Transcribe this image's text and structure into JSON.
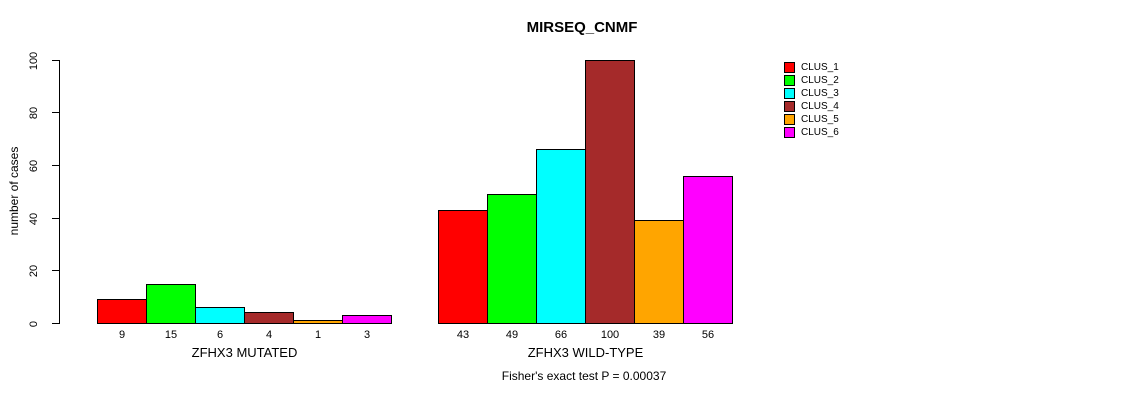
{
  "chart_data": {
    "type": "bar",
    "title": "MIRSEQ_CNMF",
    "ylabel": "number of cases",
    "xlabel": "",
    "ylim": [
      0,
      100
    ],
    "yticks": [
      0,
      20,
      40,
      60,
      80,
      100
    ],
    "grid": false,
    "legend_position": "right-outside-top",
    "series_names": [
      "CLUS_1",
      "CLUS_2",
      "CLUS_3",
      "CLUS_4",
      "CLUS_5",
      "CLUS_6"
    ],
    "series_colors": [
      "#FF0000",
      "#00FF00",
      "#00FFFF",
      "#A52A2A",
      "#FFA500",
      "#FF00FF"
    ],
    "groups": [
      {
        "label": "ZFHX3 MUTATED",
        "values": [
          9,
          15,
          6,
          4,
          1,
          3
        ]
      },
      {
        "label": "ZFHX3 WILD-TYPE",
        "values": [
          43,
          49,
          66,
          100,
          39,
          56
        ]
      }
    ],
    "annotation": "Fisher's exact test P = 0.00037"
  }
}
